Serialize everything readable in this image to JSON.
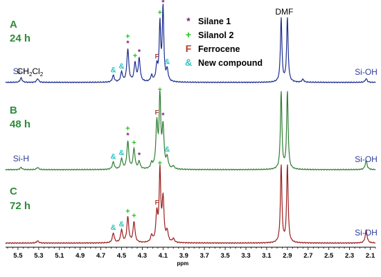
{
  "chart_data": {
    "type": "line",
    "title": "",
    "xlabel": "ppm",
    "ylabel": "",
    "x_reversed": true,
    "xlim": [
      5.62,
      2.05
    ],
    "x_ticks": [
      "5.5",
      "5.3",
      "5.1",
      "4.9",
      "4.7",
      "4.5",
      "4.3",
      "4.1",
      "3.9",
      "3.7",
      "3.5",
      "3.3",
      "3.1",
      "2.9",
      "2.7",
      "2.5",
      "2.3",
      "2.1"
    ],
    "legend": {
      "placement": "top-center",
      "entries": [
        {
          "symbol": "*",
          "label": "Silane 1",
          "color": "#7b1f7a"
        },
        {
          "symbol": "+",
          "label": "Silanol 2",
          "color": "#22c222"
        },
        {
          "symbol": "F",
          "label": "Ferrocene",
          "color": "#b03a2e"
        },
        {
          "symbol": "&",
          "label": "New compound",
          "color": "#2ec4c4"
        }
      ]
    },
    "series": [
      {
        "name": "A",
        "time": "24 h",
        "color": "#1a2b8f",
        "peaks": [
          [
            5.47,
            0.06
          ],
          [
            5.31,
            0.05
          ],
          [
            4.58,
            0.09
          ],
          [
            4.5,
            0.13
          ],
          [
            4.44,
            0.44
          ],
          [
            4.37,
            0.25
          ],
          [
            4.33,
            0.31
          ],
          [
            4.21,
            0.08
          ],
          [
            4.16,
            0.2
          ],
          [
            4.13,
            0.76
          ],
          [
            4.1,
            1.0
          ],
          [
            4.06,
            0.15
          ],
          [
            2.96,
            0.86
          ],
          [
            2.9,
            0.86
          ],
          [
            2.75,
            0.04
          ],
          [
            2.14,
            0.05
          ]
        ],
        "labels": [
          {
            "text": "Si-H",
            "x": 5.47,
            "color": "#2b3a9a"
          },
          {
            "text": "CH2Cl2",
            "x": 5.31,
            "color": "#000000"
          },
          {
            "text": "DMF",
            "x": 2.93,
            "color": "#000000"
          },
          {
            "text": "Si-OH",
            "x": 2.14,
            "color": "#2b3a9a"
          }
        ],
        "markers": [
          {
            "symbol": "&",
            "x": 4.58
          },
          {
            "symbol": "&",
            "x": 4.5
          },
          {
            "symbol": "*",
            "x": 4.44
          },
          {
            "symbol": "+",
            "x": 4.44
          },
          {
            "symbol": "+",
            "x": 4.37
          },
          {
            "symbol": "*",
            "x": 4.33
          },
          {
            "symbol": "F",
            "x": 4.16
          },
          {
            "symbol": "+",
            "x": 4.13
          },
          {
            "symbol": "*",
            "x": 4.1
          },
          {
            "symbol": "&",
            "x": 4.06
          }
        ]
      },
      {
        "name": "B",
        "time": "48 h",
        "color": "#2e7d32",
        "peaks": [
          [
            5.47,
            0.03
          ],
          [
            5.31,
            0.03
          ],
          [
            4.58,
            0.1
          ],
          [
            4.5,
            0.14
          ],
          [
            4.44,
            0.37
          ],
          [
            4.38,
            0.27
          ],
          [
            4.33,
            0.1
          ],
          [
            4.21,
            0.07
          ],
          [
            4.16,
            0.6
          ],
          [
            4.13,
            1.0
          ],
          [
            4.1,
            0.55
          ],
          [
            4.06,
            0.14
          ],
          [
            4.0,
            0.04
          ],
          [
            2.96,
            1.05
          ],
          [
            2.9,
            1.05
          ],
          [
            2.14,
            0.12
          ]
        ],
        "labels": [
          {
            "text": "Si-H",
            "x": 5.47,
            "color": "#2b3a9a"
          },
          {
            "text": "Si-OH",
            "x": 2.14,
            "color": "#2b3a9a"
          }
        ],
        "markers": [
          {
            "symbol": "&",
            "x": 4.58
          },
          {
            "symbol": "&",
            "x": 4.5
          },
          {
            "symbol": "*",
            "x": 4.44
          },
          {
            "symbol": "+",
            "x": 4.44
          },
          {
            "symbol": "+",
            "x": 4.38
          },
          {
            "symbol": "*",
            "x": 4.33
          },
          {
            "symbol": "F",
            "x": 4.16
          },
          {
            "symbol": "+",
            "x": 4.13
          },
          {
            "symbol": "*",
            "x": 4.1
          },
          {
            "symbol": "&",
            "x": 4.06
          }
        ]
      },
      {
        "name": "C",
        "time": "72 h",
        "color": "#9b1c1c",
        "peaks": [
          [
            5.31,
            0.03
          ],
          [
            4.58,
            0.13
          ],
          [
            4.5,
            0.17
          ],
          [
            4.44,
            0.34
          ],
          [
            4.38,
            0.28
          ],
          [
            4.21,
            0.09
          ],
          [
            4.16,
            0.38
          ],
          [
            4.13,
            0.95
          ],
          [
            4.1,
            0.58
          ],
          [
            4.06,
            0.14
          ],
          [
            4.0,
            0.05
          ],
          [
            2.96,
            1.05
          ],
          [
            2.9,
            1.05
          ],
          [
            2.14,
            0.17
          ]
        ],
        "labels": [
          {
            "text": "Si-OH",
            "x": 2.14,
            "color": "#2b3a9a"
          }
        ],
        "markers": [
          {
            "symbol": "&",
            "x": 4.58
          },
          {
            "symbol": "&",
            "x": 4.5
          },
          {
            "symbol": "+",
            "x": 4.44
          },
          {
            "symbol": "+",
            "x": 4.38
          },
          {
            "symbol": "F",
            "x": 4.16
          },
          {
            "symbol": "+",
            "x": 4.13
          }
        ]
      }
    ]
  }
}
